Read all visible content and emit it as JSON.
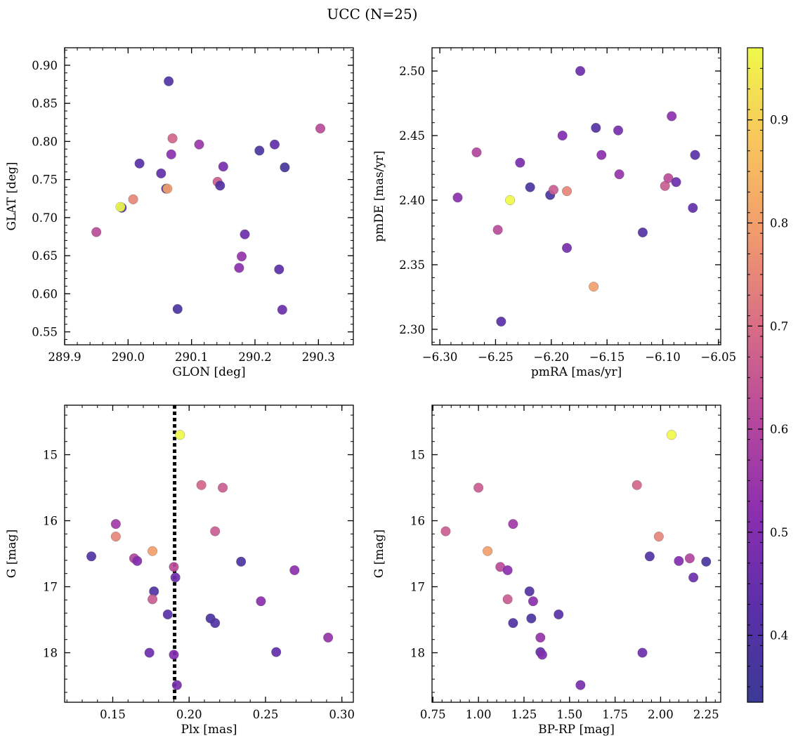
{
  "figure": {
    "title": "UCC (N=25)"
  },
  "colormap": {
    "name": "plasma",
    "stops": [
      "#3b3a96",
      "#5a2fa8",
      "#8a2eb0",
      "#b5479d",
      "#d86c86",
      "#f19a6e",
      "#f8c55c",
      "#f0f94a"
    ],
    "range": [
      0.335,
      0.97
    ],
    "ticks": [
      0.4,
      0.5,
      0.6,
      0.7,
      0.8,
      0.9
    ],
    "tick_labels": [
      "0.4",
      "0.5",
      "0.6",
      "0.7",
      "0.8",
      "0.9"
    ]
  },
  "chart_data": [
    {
      "type": "scatter",
      "id": "glon-glat",
      "xlabel": "GLON [deg]",
      "ylabel": "GLAT [deg]",
      "xlim": [
        289.9,
        290.355
      ],
      "ylim": [
        0.533,
        0.923
      ],
      "xticks": [
        289.9,
        290.0,
        290.1,
        290.2,
        290.3
      ],
      "xtick_labels": [
        "289.9",
        "290.0",
        "290.1",
        "290.2",
        "290.3"
      ],
      "yticks": [
        0.55,
        0.6,
        0.65,
        0.7,
        0.75,
        0.8,
        0.85,
        0.9
      ],
      "ytick_labels": [
        "0.55",
        "0.60",
        "0.65",
        "0.70",
        "0.75",
        "0.80",
        "0.85",
        "0.90"
      ],
      "points": [
        {
          "x": 289.95,
          "y": 0.681,
          "c": 0.62
        },
        {
          "x": 289.99,
          "y": 0.713,
          "c": 0.4
        },
        {
          "x": 289.988,
          "y": 0.714,
          "c": 0.97
        },
        {
          "x": 290.008,
          "y": 0.724,
          "c": 0.75
        },
        {
          "x": 290.018,
          "y": 0.771,
          "c": 0.42
        },
        {
          "x": 290.052,
          "y": 0.758,
          "c": 0.44
        },
        {
          "x": 290.06,
          "y": 0.738,
          "c": 0.38
        },
        {
          "x": 290.062,
          "y": 0.738,
          "c": 0.8
        },
        {
          "x": 290.064,
          "y": 0.879,
          "c": 0.4
        },
        {
          "x": 290.07,
          "y": 0.804,
          "c": 0.68
        },
        {
          "x": 290.068,
          "y": 0.783,
          "c": 0.52
        },
        {
          "x": 290.078,
          "y": 0.58,
          "c": 0.38
        },
        {
          "x": 290.112,
          "y": 0.796,
          "c": 0.55
        },
        {
          "x": 290.141,
          "y": 0.747,
          "c": 0.66
        },
        {
          "x": 290.145,
          "y": 0.742,
          "c": 0.4
        },
        {
          "x": 290.15,
          "y": 0.767,
          "c": 0.48
        },
        {
          "x": 290.175,
          "y": 0.634,
          "c": 0.52
        },
        {
          "x": 290.179,
          "y": 0.649,
          "c": 0.54
        },
        {
          "x": 290.184,
          "y": 0.678,
          "c": 0.46
        },
        {
          "x": 290.207,
          "y": 0.788,
          "c": 0.38
        },
        {
          "x": 290.231,
          "y": 0.796,
          "c": 0.44
        },
        {
          "x": 290.238,
          "y": 0.632,
          "c": 0.43
        },
        {
          "x": 290.243,
          "y": 0.579,
          "c": 0.46
        },
        {
          "x": 290.247,
          "y": 0.766,
          "c": 0.36
        },
        {
          "x": 290.303,
          "y": 0.817,
          "c": 0.62
        }
      ]
    },
    {
      "type": "scatter",
      "id": "pmra-pmde",
      "xlabel": "pmRA [mas/yr]",
      "ylabel": "pmDE [mas/yr]",
      "xlim": [
        -6.307,
        -6.048
      ],
      "ylim": [
        2.288,
        2.518
      ],
      "xticks": [
        -6.3,
        -6.25,
        -6.2,
        -6.15,
        -6.1,
        -6.05
      ],
      "xtick_labels": [
        "−6.30",
        "−6.25",
        "−6.20",
        "−6.15",
        "−6.10",
        "−6.05"
      ],
      "yticks": [
        2.3,
        2.35,
        2.4,
        2.45,
        2.5
      ],
      "ytick_labels": [
        "2.30",
        "2.35",
        "2.40",
        "2.45",
        "2.50"
      ],
      "points": [
        {
          "x": -6.284,
          "y": 2.402,
          "c": 0.52
        },
        {
          "x": -6.267,
          "y": 2.437,
          "c": 0.6
        },
        {
          "x": -6.248,
          "y": 2.377,
          "c": 0.62
        },
        {
          "x": -6.245,
          "y": 2.306,
          "c": 0.42
        },
        {
          "x": -6.237,
          "y": 2.4,
          "c": 0.97
        },
        {
          "x": -6.228,
          "y": 2.429,
          "c": 0.48
        },
        {
          "x": -6.219,
          "y": 2.41,
          "c": 0.38
        },
        {
          "x": -6.201,
          "y": 2.404,
          "c": 0.38
        },
        {
          "x": -6.198,
          "y": 2.408,
          "c": 0.66
        },
        {
          "x": -6.19,
          "y": 2.45,
          "c": 0.5
        },
        {
          "x": -6.186,
          "y": 2.407,
          "c": 0.75
        },
        {
          "x": -6.186,
          "y": 2.363,
          "c": 0.48
        },
        {
          "x": -6.174,
          "y": 2.5,
          "c": 0.46
        },
        {
          "x": -6.162,
          "y": 2.333,
          "c": 0.8
        },
        {
          "x": -6.16,
          "y": 2.456,
          "c": 0.4
        },
        {
          "x": -6.155,
          "y": 2.435,
          "c": 0.52
        },
        {
          "x": -6.14,
          "y": 2.454,
          "c": 0.48
        },
        {
          "x": -6.139,
          "y": 2.42,
          "c": 0.54
        },
        {
          "x": -6.118,
          "y": 2.375,
          "c": 0.4
        },
        {
          "x": -6.098,
          "y": 2.411,
          "c": 0.66
        },
        {
          "x": -6.095,
          "y": 2.417,
          "c": 0.62
        },
        {
          "x": -6.092,
          "y": 2.465,
          "c": 0.52
        },
        {
          "x": -6.088,
          "y": 2.414,
          "c": 0.46
        },
        {
          "x": -6.073,
          "y": 2.394,
          "c": 0.44
        },
        {
          "x": -6.071,
          "y": 2.435,
          "c": 0.42
        }
      ]
    },
    {
      "type": "scatter",
      "id": "plx-g",
      "xlabel": "Plx [mas]",
      "ylabel": "G [mag]",
      "xlim": [
        0.1185,
        0.3075
      ],
      "ylim": [
        18.75,
        14.25
      ],
      "y_inverted": true,
      "xticks": [
        0.15,
        0.2,
        0.25,
        0.3
      ],
      "xtick_labels": [
        "0.15",
        "0.20",
        "0.25",
        "0.30"
      ],
      "yticks": [
        15,
        16,
        17,
        18
      ],
      "ytick_labels": [
        "15",
        "16",
        "17",
        "18"
      ],
      "vline": {
        "x": 0.1905,
        "style": "dotted",
        "color": "#000000"
      },
      "points": [
        {
          "x": 0.136,
          "y": 16.54,
          "c": 0.4
        },
        {
          "x": 0.152,
          "y": 16.05,
          "c": 0.56
        },
        {
          "x": 0.152,
          "y": 16.24,
          "c": 0.75
        },
        {
          "x": 0.164,
          "y": 16.57,
          "c": 0.6
        },
        {
          "x": 0.166,
          "y": 16.61,
          "c": 0.5
        },
        {
          "x": 0.176,
          "y": 16.46,
          "c": 0.8
        },
        {
          "x": 0.177,
          "y": 17.07,
          "c": 0.4
        },
        {
          "x": 0.176,
          "y": 17.19,
          "c": 0.66
        },
        {
          "x": 0.186,
          "y": 17.42,
          "c": 0.42
        },
        {
          "x": 0.174,
          "y": 18.0,
          "c": 0.46
        },
        {
          "x": 0.19,
          "y": 16.7,
          "c": 0.62
        },
        {
          "x": 0.191,
          "y": 16.86,
          "c": 0.46
        },
        {
          "x": 0.19,
          "y": 18.03,
          "c": 0.5
        },
        {
          "x": 0.192,
          "y": 18.49,
          "c": 0.48
        },
        {
          "x": 0.194,
          "y": 14.7,
          "c": 0.97
        },
        {
          "x": 0.208,
          "y": 15.46,
          "c": 0.68
        },
        {
          "x": 0.222,
          "y": 15.5,
          "c": 0.66
        },
        {
          "x": 0.217,
          "y": 16.16,
          "c": 0.66
        },
        {
          "x": 0.214,
          "y": 17.48,
          "c": 0.38
        },
        {
          "x": 0.217,
          "y": 17.55,
          "c": 0.4
        },
        {
          "x": 0.234,
          "y": 16.62,
          "c": 0.38
        },
        {
          "x": 0.247,
          "y": 17.22,
          "c": 0.52
        },
        {
          "x": 0.257,
          "y": 17.99,
          "c": 0.44
        },
        {
          "x": 0.269,
          "y": 16.75,
          "c": 0.52
        },
        {
          "x": 0.291,
          "y": 17.77,
          "c": 0.54
        }
      ]
    },
    {
      "type": "scatter",
      "id": "bprp-g",
      "xlabel": "BP-RP [mag]",
      "ylabel": "G [mag]",
      "xlim": [
        0.745,
        2.33
      ],
      "ylim": [
        18.75,
        14.25
      ],
      "y_inverted": true,
      "xticks": [
        0.75,
        1.0,
        1.25,
        1.5,
        1.75,
        2.0,
        2.25
      ],
      "xtick_labels": [
        "0.75",
        "1.00",
        "1.25",
        "1.50",
        "1.75",
        "2.00",
        "2.25"
      ],
      "yticks": [
        15,
        16,
        17,
        18
      ],
      "ytick_labels": [
        "15",
        "16",
        "17",
        "18"
      ],
      "points": [
        {
          "x": 0.82,
          "y": 16.16,
          "c": 0.66
        },
        {
          "x": 1.0,
          "y": 15.5,
          "c": 0.66
        },
        {
          "x": 1.05,
          "y": 16.46,
          "c": 0.8
        },
        {
          "x": 1.12,
          "y": 16.7,
          "c": 0.62
        },
        {
          "x": 1.16,
          "y": 16.75,
          "c": 0.52
        },
        {
          "x": 1.16,
          "y": 17.19,
          "c": 0.66
        },
        {
          "x": 1.19,
          "y": 16.05,
          "c": 0.56
        },
        {
          "x": 1.19,
          "y": 17.55,
          "c": 0.4
        },
        {
          "x": 1.28,
          "y": 17.07,
          "c": 0.4
        },
        {
          "x": 1.29,
          "y": 17.48,
          "c": 0.38
        },
        {
          "x": 1.3,
          "y": 17.22,
          "c": 0.52
        },
        {
          "x": 1.34,
          "y": 17.77,
          "c": 0.54
        },
        {
          "x": 1.34,
          "y": 17.99,
          "c": 0.44
        },
        {
          "x": 1.35,
          "y": 18.03,
          "c": 0.5
        },
        {
          "x": 1.44,
          "y": 17.42,
          "c": 0.42
        },
        {
          "x": 1.56,
          "y": 18.49,
          "c": 0.48
        },
        {
          "x": 1.87,
          "y": 15.46,
          "c": 0.68
        },
        {
          "x": 1.9,
          "y": 18.0,
          "c": 0.46
        },
        {
          "x": 1.94,
          "y": 16.54,
          "c": 0.4
        },
        {
          "x": 1.99,
          "y": 16.24,
          "c": 0.75
        },
        {
          "x": 2.06,
          "y": 14.7,
          "c": 0.97
        },
        {
          "x": 2.1,
          "y": 16.61,
          "c": 0.5
        },
        {
          "x": 2.16,
          "y": 16.57,
          "c": 0.6
        },
        {
          "x": 2.18,
          "y": 16.86,
          "c": 0.46
        },
        {
          "x": 2.25,
          "y": 16.62,
          "c": 0.38
        }
      ]
    }
  ]
}
